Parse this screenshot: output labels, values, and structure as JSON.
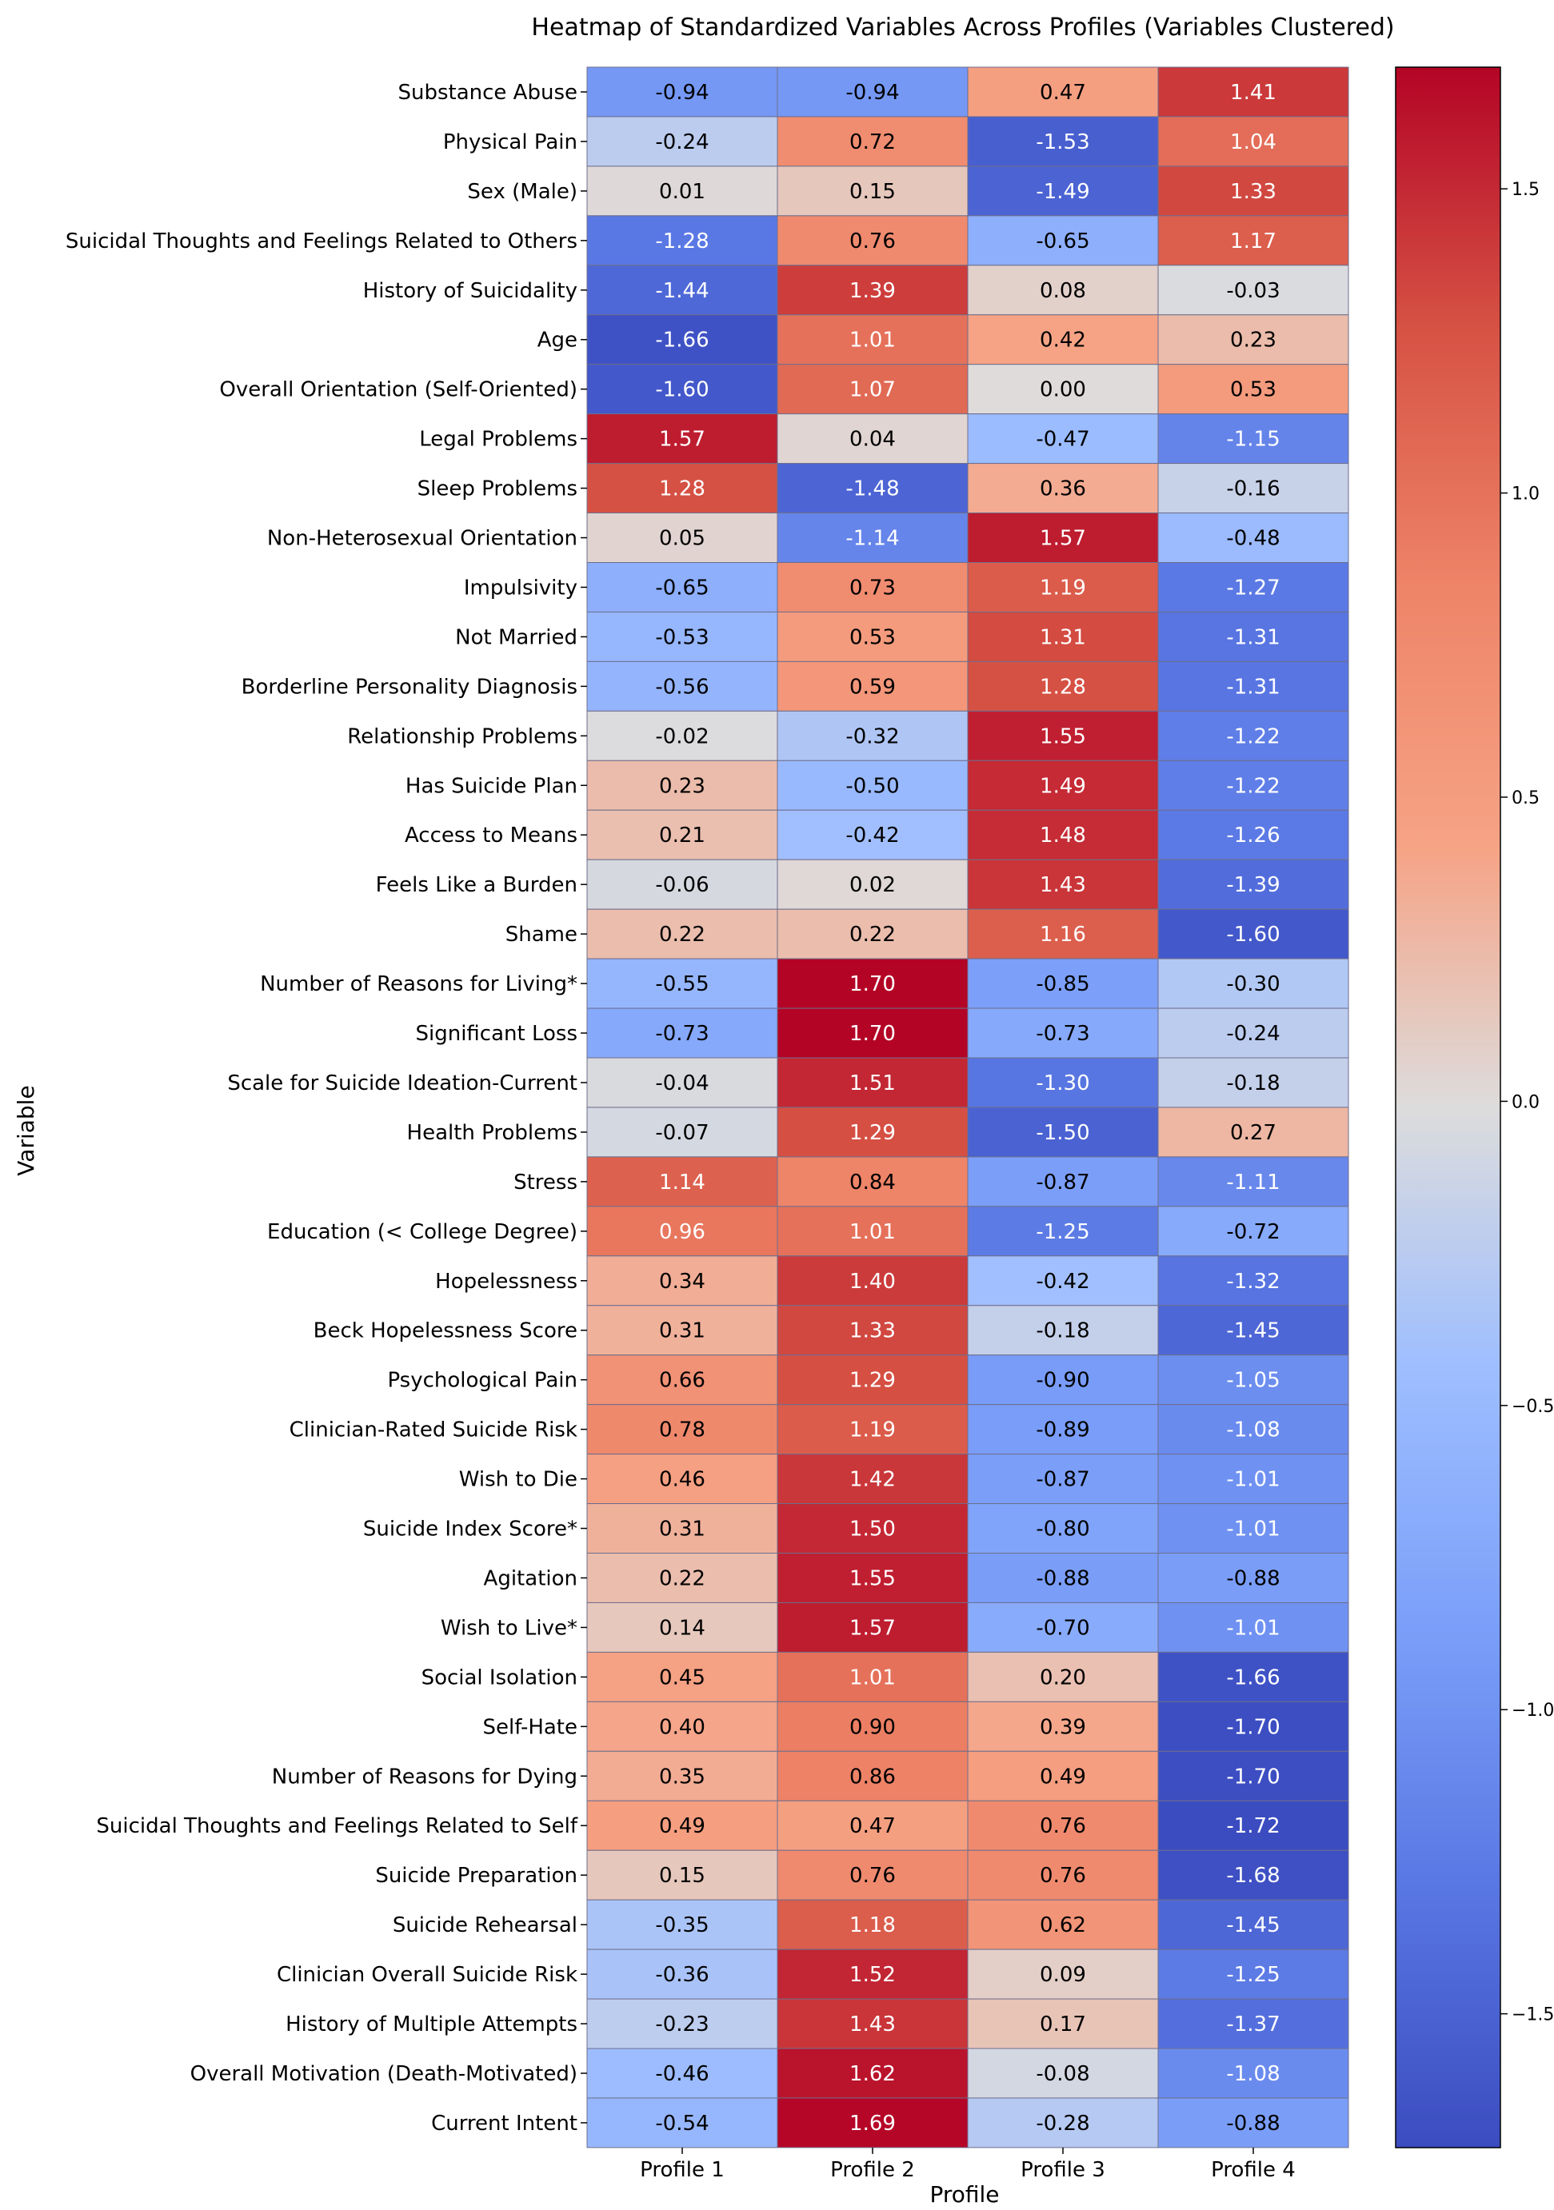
{
  "chart_data": {
    "type": "heatmap",
    "title": "Heatmap of Standardized Variables Across Profiles (Variables Clustered)",
    "xlabel": "Profile",
    "ylabel": "Variable",
    "columns": [
      "Profile 1",
      "Profile 2",
      "Profile 3",
      "Profile 4"
    ],
    "rows": [
      "Substance Abuse",
      "Physical Pain",
      "Sex (Male)",
      "Suicidal Thoughts and Feelings Related to Others",
      "History of Suicidality",
      "Age",
      "Overall Orientation (Self-Oriented)",
      "Legal Problems",
      "Sleep Problems",
      "Non-Heterosexual Orientation",
      "Impulsivity",
      "Not Married",
      "Borderline Personality Diagnosis",
      "Relationship Problems",
      "Has Suicide Plan",
      "Access to Means",
      "Feels Like a Burden",
      "Shame",
      "Number of Reasons for Living*",
      "Significant Loss",
      "Scale for Suicide Ideation-Current",
      "Health Problems",
      "Stress",
      "Education (< College Degree)",
      "Hopelessness",
      "Beck Hopelessness Score",
      "Psychological Pain",
      "Clinician-Rated Suicide Risk",
      "Wish to Die",
      "Suicide Index Score*",
      "Agitation",
      "Wish to Live*",
      "Social Isolation",
      "Self-Hate",
      "Number of Reasons for Dying",
      "Suicidal Thoughts and Feelings Related to Self",
      "Suicide Preparation",
      "Suicide Rehearsal",
      "Clinician Overall Suicide Risk",
      "History of Multiple Attempts",
      "Overall Motivation (Death-Motivated)",
      "Current Intent"
    ],
    "values": [
      [
        -0.94,
        -0.94,
        0.47,
        1.41
      ],
      [
        -0.24,
        0.72,
        -1.53,
        1.04
      ],
      [
        0.01,
        0.15,
        -1.49,
        1.33
      ],
      [
        -1.28,
        0.76,
        -0.65,
        1.17
      ],
      [
        -1.44,
        1.39,
        0.08,
        -0.03
      ],
      [
        -1.66,
        1.01,
        0.42,
        0.23
      ],
      [
        -1.6,
        1.07,
        0.0,
        0.53
      ],
      [
        1.57,
        0.04,
        -0.47,
        -1.15
      ],
      [
        1.28,
        -1.48,
        0.36,
        -0.16
      ],
      [
        0.05,
        -1.14,
        1.57,
        -0.48
      ],
      [
        -0.65,
        0.73,
        1.19,
        -1.27
      ],
      [
        -0.53,
        0.53,
        1.31,
        -1.31
      ],
      [
        -0.56,
        0.59,
        1.28,
        -1.31
      ],
      [
        -0.02,
        -0.32,
        1.55,
        -1.22
      ],
      [
        0.23,
        -0.5,
        1.49,
        -1.22
      ],
      [
        0.21,
        -0.42,
        1.48,
        -1.26
      ],
      [
        -0.06,
        0.02,
        1.43,
        -1.39
      ],
      [
        0.22,
        0.22,
        1.16,
        -1.6
      ],
      [
        -0.55,
        1.7,
        -0.85,
        -0.3
      ],
      [
        -0.73,
        1.7,
        -0.73,
        -0.24
      ],
      [
        -0.04,
        1.51,
        -1.3,
        -0.18
      ],
      [
        -0.07,
        1.29,
        -1.5,
        0.27
      ],
      [
        1.14,
        0.84,
        -0.87,
        -1.11
      ],
      [
        0.96,
        1.01,
        -1.25,
        -0.72
      ],
      [
        0.34,
        1.4,
        -0.42,
        -1.32
      ],
      [
        0.31,
        1.33,
        -0.18,
        -1.45
      ],
      [
        0.66,
        1.29,
        -0.9,
        -1.05
      ],
      [
        0.78,
        1.19,
        -0.89,
        -1.08
      ],
      [
        0.46,
        1.42,
        -0.87,
        -1.01
      ],
      [
        0.31,
        1.5,
        -0.8,
        -1.01
      ],
      [
        0.22,
        1.55,
        -0.88,
        -0.88
      ],
      [
        0.14,
        1.57,
        -0.7,
        -1.01
      ],
      [
        0.45,
        1.01,
        0.2,
        -1.66
      ],
      [
        0.4,
        0.9,
        0.39,
        -1.7
      ],
      [
        0.35,
        0.86,
        0.49,
        -1.7
      ],
      [
        0.49,
        0.47,
        0.76,
        -1.72
      ],
      [
        0.15,
        0.76,
        0.76,
        -1.68
      ],
      [
        -0.35,
        1.18,
        0.62,
        -1.45
      ],
      [
        -0.36,
        1.52,
        0.09,
        -1.25
      ],
      [
        -0.23,
        1.43,
        0.17,
        -1.37
      ],
      [
        -0.46,
        1.62,
        -0.08,
        -1.08
      ],
      [
        -0.54,
        1.69,
        -0.28,
        -0.88
      ]
    ],
    "value_format": "0.00",
    "colormap": "coolwarm",
    "vmin": -1.72,
    "vmax": 1.7,
    "colorbar_ticks": [
      1.5,
      1.0,
      0.5,
      0.0,
      -0.5,
      -1.0,
      -1.5
    ],
    "colorbar_tick_labels": [
      "1.5",
      "1.0",
      "0.5",
      "0.0",
      "−0.5",
      "−1.0",
      "−1.5"
    ],
    "legend": "colorbar, right",
    "grid": true
  }
}
